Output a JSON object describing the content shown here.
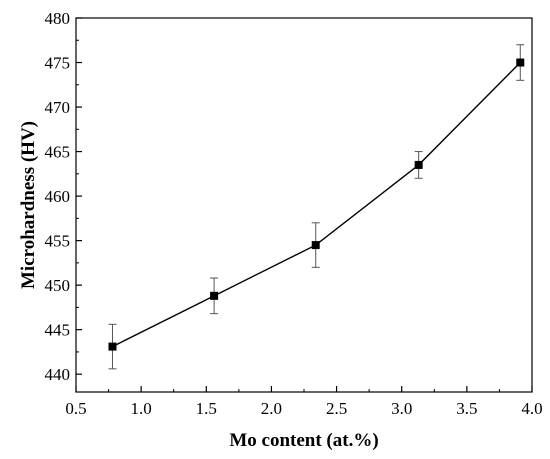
{
  "chart_data": {
    "type": "line",
    "title": "",
    "xlabel": "Mo content (at.%)",
    "ylabel": "Microhardness (HV)",
    "xlim": [
      0.5,
      4.0
    ],
    "ylim": [
      438,
      480
    ],
    "x_ticks": [
      0.5,
      1.0,
      1.5,
      2.0,
      2.5,
      3.0,
      3.5,
      4.0
    ],
    "x_tick_labels": [
      "0.5",
      "1.0",
      "1.5",
      "2.0",
      "2.5",
      "3.0",
      "3.5",
      "4.0"
    ],
    "y_ticks": [
      440,
      445,
      450,
      455,
      460,
      465,
      470,
      475,
      480
    ],
    "y_tick_labels": [
      "440",
      "445",
      "450",
      "455",
      "460",
      "465",
      "470",
      "475",
      "480"
    ],
    "grid": false,
    "marker": "square",
    "series": [
      {
        "x": [
          0.78,
          1.56,
          2.34,
          3.13,
          3.91
        ],
        "y": [
          443.1,
          448.8,
          454.5,
          463.5,
          475.0
        ],
        "error": [
          2.5,
          2.0,
          2.5,
          1.5,
          2.0
        ]
      }
    ]
  }
}
